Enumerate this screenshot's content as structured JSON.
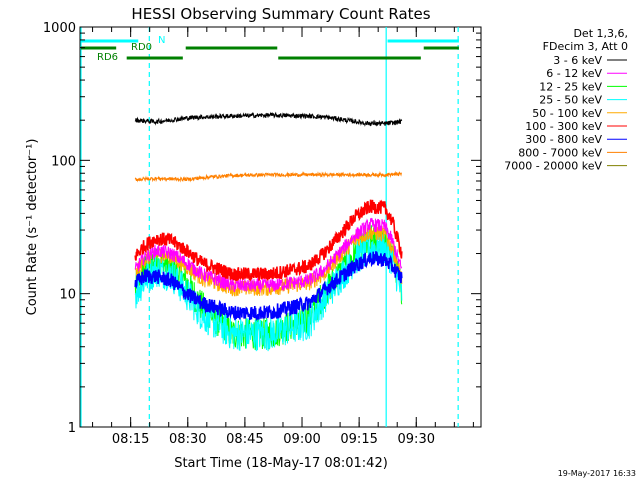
{
  "chart_data": {
    "type": "line",
    "title": "HESSI Observing Summary Count Rates",
    "xlabel": "Start Time (18-May-17 08:01:42)",
    "ylabel": "Count Rate (s⁻¹ detector⁻¹)",
    "yscale": "log",
    "ylim": [
      1,
      1000
    ],
    "xlim_minutes_after_start": [
      0,
      105.3
    ],
    "y_ticks": [
      "1",
      "10",
      "100",
      "1000"
    ],
    "x_ticks": [
      {
        "t": 13.3,
        "label": "08:15"
      },
      {
        "t": 28.3,
        "label": "08:30"
      },
      {
        "t": 43.3,
        "label": "08:45"
      },
      {
        "t": 58.3,
        "label": "09:00"
      },
      {
        "t": 73.3,
        "label": "09:15"
      },
      {
        "t": 88.3,
        "label": "09:30"
      }
    ],
    "legend_header": [
      "Det 1,3,6,",
      "FDecim 3, Att 0"
    ],
    "series": [
      {
        "name": "3 - 6 keV",
        "color": "#000000",
        "x": [
          14.5,
          20,
          30,
          40,
          50,
          60,
          65,
          70,
          75,
          80,
          84.5
        ],
        "y": [
          200,
          195,
          210,
          215,
          218,
          215,
          210,
          200,
          190,
          188,
          195
        ]
      },
      {
        "name": "6 - 12 keV",
        "color": "#ff00ff",
        "x": [
          14.5,
          17,
          20,
          24,
          28,
          32,
          40,
          50,
          60,
          64,
          68,
          72,
          76,
          80,
          82,
          84.5
        ],
        "y": [
          15,
          19,
          21,
          20,
          17,
          14,
          11.5,
          11.5,
          12.5,
          15,
          20,
          27,
          33,
          32,
          25,
          15
        ]
      },
      {
        "name": "12 - 25 keV",
        "color": "#00ff00",
        "x": [
          14.5,
          17,
          20,
          24,
          28,
          32,
          40,
          50,
          60,
          64,
          68,
          72,
          76,
          80,
          82,
          84.5
        ],
        "y": [
          11,
          15,
          17,
          16,
          12,
          8,
          5,
          5,
          6.5,
          10,
          14,
          19,
          25,
          24,
          20,
          11
        ]
      },
      {
        "name": "25 - 50 keV",
        "color": "#00ffff",
        "x": [
          14.5,
          17,
          20,
          24,
          28,
          32,
          40,
          50,
          60,
          64,
          68,
          72,
          76,
          80,
          82,
          84.5
        ],
        "y": [
          10,
          13,
          15,
          14,
          10,
          7,
          5,
          5,
          6,
          9,
          13,
          18,
          22,
          22,
          18,
          10
        ]
      },
      {
        "name": "50 - 100 keV",
        "color": "#ffaa00",
        "x": [
          14.5,
          17,
          20,
          24,
          28,
          32,
          40,
          50,
          60,
          64,
          68,
          72,
          76,
          80,
          82,
          84.5
        ],
        "y": [
          14,
          18,
          20,
          19,
          16,
          13,
          11,
          11,
          12,
          14,
          19,
          25,
          29,
          28,
          22,
          13
        ]
      },
      {
        "name": "100 - 300 keV",
        "color": "#ff0000",
        "x": [
          14.5,
          17,
          20,
          24,
          28,
          32,
          40,
          50,
          60,
          64,
          68,
          72,
          76,
          80,
          82,
          84.5
        ],
        "y": [
          19,
          23,
          26,
          25,
          21,
          17,
          14,
          14,
          16,
          20,
          27,
          37,
          45,
          44,
          35,
          20
        ]
      },
      {
        "name": "300 - 800 keV",
        "color": "#0000ff",
        "x": [
          14.5,
          17,
          20,
          24,
          28,
          32,
          40,
          50,
          60,
          64,
          68,
          72,
          76,
          80,
          82,
          84.5
        ],
        "y": [
          12,
          13.5,
          13.5,
          12.5,
          10,
          8.5,
          7.2,
          7.2,
          8.5,
          10.5,
          13,
          16,
          18.5,
          18,
          16,
          13
        ]
      },
      {
        "name": "800 - 7000 keV",
        "color": "#ff8000",
        "x": [
          14.5,
          20,
          28,
          34,
          40,
          50,
          60,
          70,
          80,
          84.5
        ],
        "y": [
          72,
          73,
          72,
          75,
          77,
          78,
          78,
          78,
          78,
          79
        ]
      },
      {
        "name": "7000 - 20000 keV",
        "color": "#808000",
        "x": [],
        "y": []
      }
    ],
    "status_bars": [
      {
        "label": "N",
        "color": "#00ffff",
        "segments": [
          [
            0,
            15.3
          ],
          [
            80.5,
            99.5
          ]
        ]
      },
      {
        "label": "RD0",
        "color": "#008000",
        "segments": [
          [
            0,
            9.5
          ],
          [
            27.5,
            51.8
          ],
          [
            90,
            99.5
          ]
        ]
      },
      {
        "label": "RD6",
        "color": "#008000",
        "segments": [
          [
            12,
            27
          ],
          [
            51.8,
            89.5
          ]
        ]
      }
    ],
    "vertical_lines": [
      {
        "t": 0,
        "style": "solid",
        "color": "#00ffff"
      },
      {
        "t": 18.2,
        "style": "dashed",
        "color": "#00ffff"
      },
      {
        "t": 80.4,
        "style": "solid",
        "color": "#00ffff"
      },
      {
        "t": 99.3,
        "style": "dashed",
        "color": "#00ffff"
      }
    ],
    "grid": false,
    "legend_position": "right"
  },
  "footer_timestamp": "19-May-2017 16:33"
}
